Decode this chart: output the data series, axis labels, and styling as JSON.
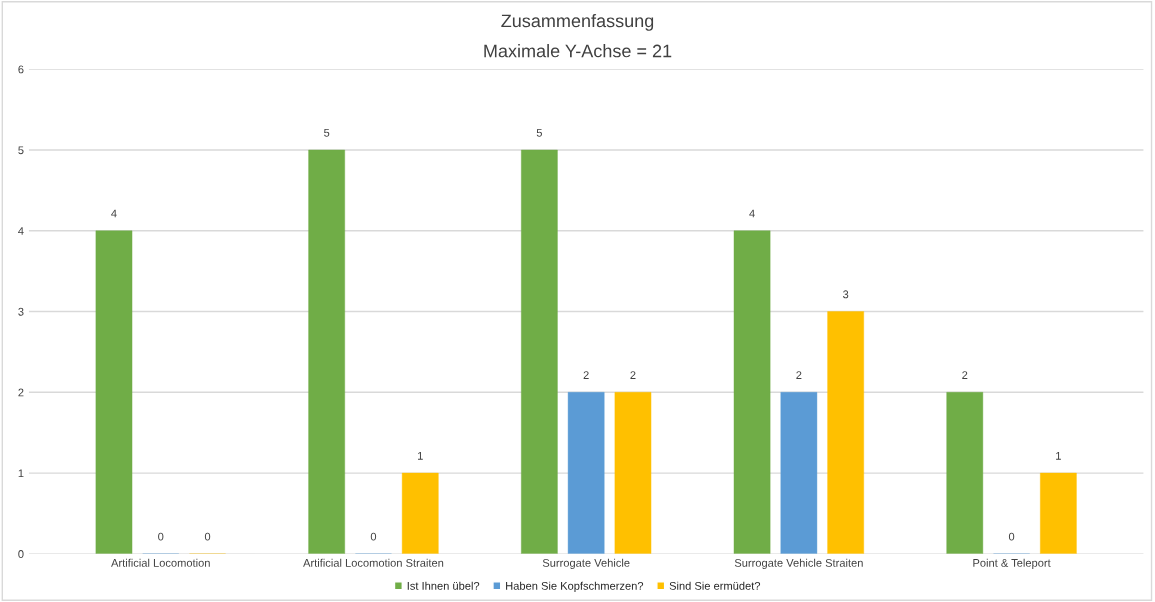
{
  "chart_data": {
    "type": "bar",
    "title": "Zusammenfassung",
    "subtitle": "Maximale Y-Achse = 21",
    "categories": [
      "Artificial Locomotion",
      "Artificial Locomotion Straiten",
      "Surrogate Vehicle",
      "Surrogate Vehicle Straiten",
      "Point & Teleport"
    ],
    "series": [
      {
        "name": "Ist Ihnen übel?",
        "color": "#70ad47",
        "values": [
          4,
          5,
          5,
          4,
          2
        ]
      },
      {
        "name": "Haben Sie Kopfschmerzen?",
        "color": "#5b9bd5",
        "values": [
          0,
          0,
          2,
          2,
          0
        ]
      },
      {
        "name": "Sind Sie ermüdet?",
        "color": "#ffc000",
        "values": [
          0,
          1,
          2,
          3,
          1
        ]
      }
    ],
    "ylim": [
      0,
      6
    ],
    "yticks": [
      0,
      1,
      2,
      3,
      4,
      5,
      6
    ],
    "grid": "y",
    "legend": "bottom",
    "data_labels": true
  }
}
